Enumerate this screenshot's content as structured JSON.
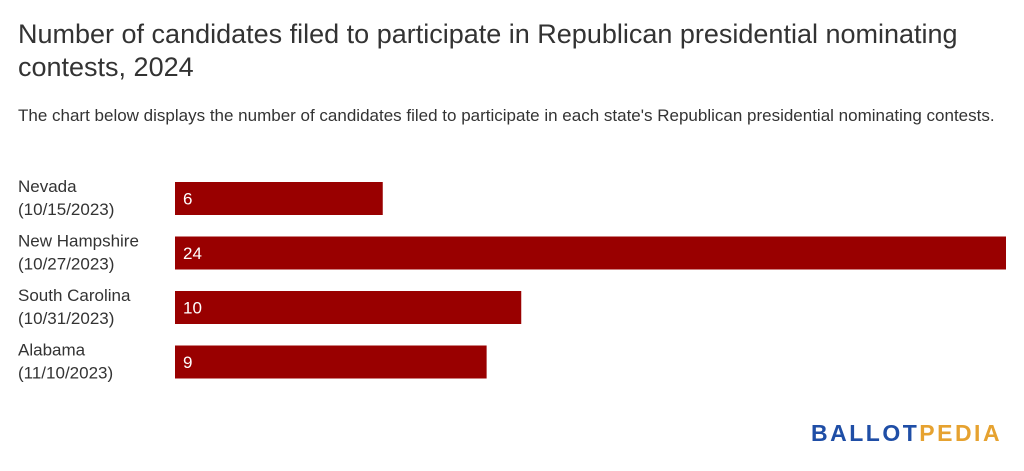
{
  "header": {
    "title": "Number of candidates filed to participate in Republican presidential nominating contests, 2024",
    "subtitle": "The chart below displays the number of candidates filed to participate in each state's Republican presidential nominating contests."
  },
  "logo": {
    "part1": "BALLOT",
    "part2": "PEDIA",
    "color1": "#1f4ea6",
    "color2": "#e6a230"
  },
  "chart_data": {
    "type": "bar",
    "orientation": "horizontal",
    "categories": [
      [
        "Nevada",
        "(10/15/2023)"
      ],
      [
        "New Hampshire",
        "(10/27/2023)"
      ],
      [
        "South Carolina",
        "(10/31/2023)"
      ],
      [
        "Alabama",
        "(11/10/2023)"
      ]
    ],
    "values": [
      6,
      24,
      10,
      9
    ],
    "xlim": [
      0,
      24
    ],
    "bar_color": "#990000",
    "grid": false,
    "legend": "none"
  }
}
